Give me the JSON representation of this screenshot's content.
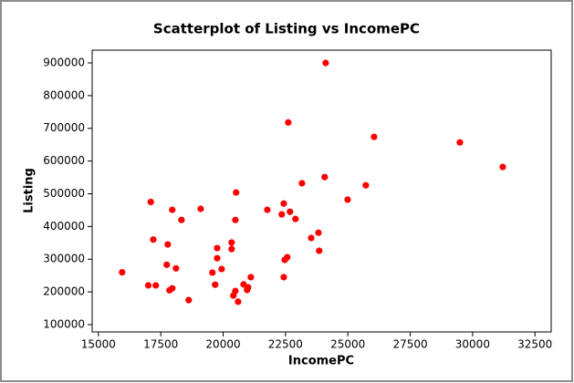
{
  "chart_data": {
    "type": "scatter",
    "title": "Scatterplot of Listing vs IncomePC",
    "x_label": "IncomePC",
    "y_label": "Listing",
    "color": "#ff0000",
    "x": [
      15950,
      17000,
      17300,
      17100,
      17200,
      17780,
      17740,
      17850,
      17960,
      17960,
      18110,
      18330,
      18620,
      19100,
      19570,
      19680,
      19760,
      19760,
      19940,
      20340,
      20340,
      20410,
      20490,
      20520,
      20490,
      20600,
      20820,
      20960,
      21000,
      21110,
      21770,
      22350,
      22430,
      22430,
      22470,
      22570,
      22610,
      22680,
      22900,
      23160,
      23530,
      23820,
      23850,
      24110,
      24070,
      24990,
      25720,
      26050,
      29490,
      31210
    ],
    "values": [
      260000,
      220000,
      220000,
      475000,
      360000,
      345000,
      283000,
      205000,
      211000,
      451000,
      272000,
      420000,
      175000,
      454000,
      259000,
      222000,
      303000,
      334000,
      270000,
      351000,
      331000,
      189000,
      203000,
      504000,
      420000,
      170000,
      223000,
      206000,
      214000,
      245000,
      451000,
      437000,
      470000,
      245000,
      298000,
      306000,
      718000,
      445000,
      423000,
      532000,
      365000,
      381000,
      326000,
      900000,
      551000,
      482000,
      526000,
      674000,
      657000,
      582000
    ],
    "xlim": [
      14750,
      33150
    ],
    "ylim": [
      77700,
      939000
    ],
    "xticks": [
      15000,
      17500,
      20000,
      22500,
      25000,
      27500,
      30000,
      32500
    ],
    "yticks": [
      100000,
      200000,
      300000,
      400000,
      500000,
      600000,
      700000,
      800000,
      900000
    ]
  }
}
